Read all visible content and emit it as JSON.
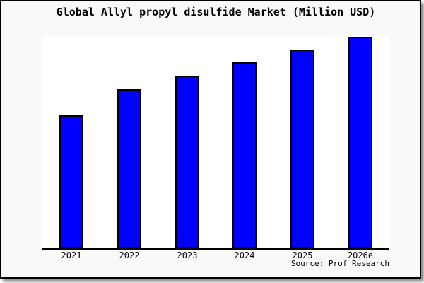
{
  "chart_data": {
    "type": "bar",
    "title": "Global Allyl propyl disulfide Market (Million USD)",
    "categories": [
      "2021",
      "2022",
      "2023",
      "2024",
      "2025",
      "2026e"
    ],
    "values": [
      62.7,
      75.0,
      81.3,
      87.7,
      93.7,
      99.7
    ],
    "xlabel": "",
    "ylabel": "",
    "ylim": [
      0,
      100
    ],
    "y_axis_visible": false,
    "grid": false,
    "legend": false,
    "bar_color": "#0000ff",
    "bar_border_color": "#000000",
    "source_note": "Source: Prof Research"
  },
  "colors": {
    "figure_background": "#f9f9f9",
    "plot_background": "#ffffff",
    "frame_border": "#000000",
    "text": "#000000"
  }
}
